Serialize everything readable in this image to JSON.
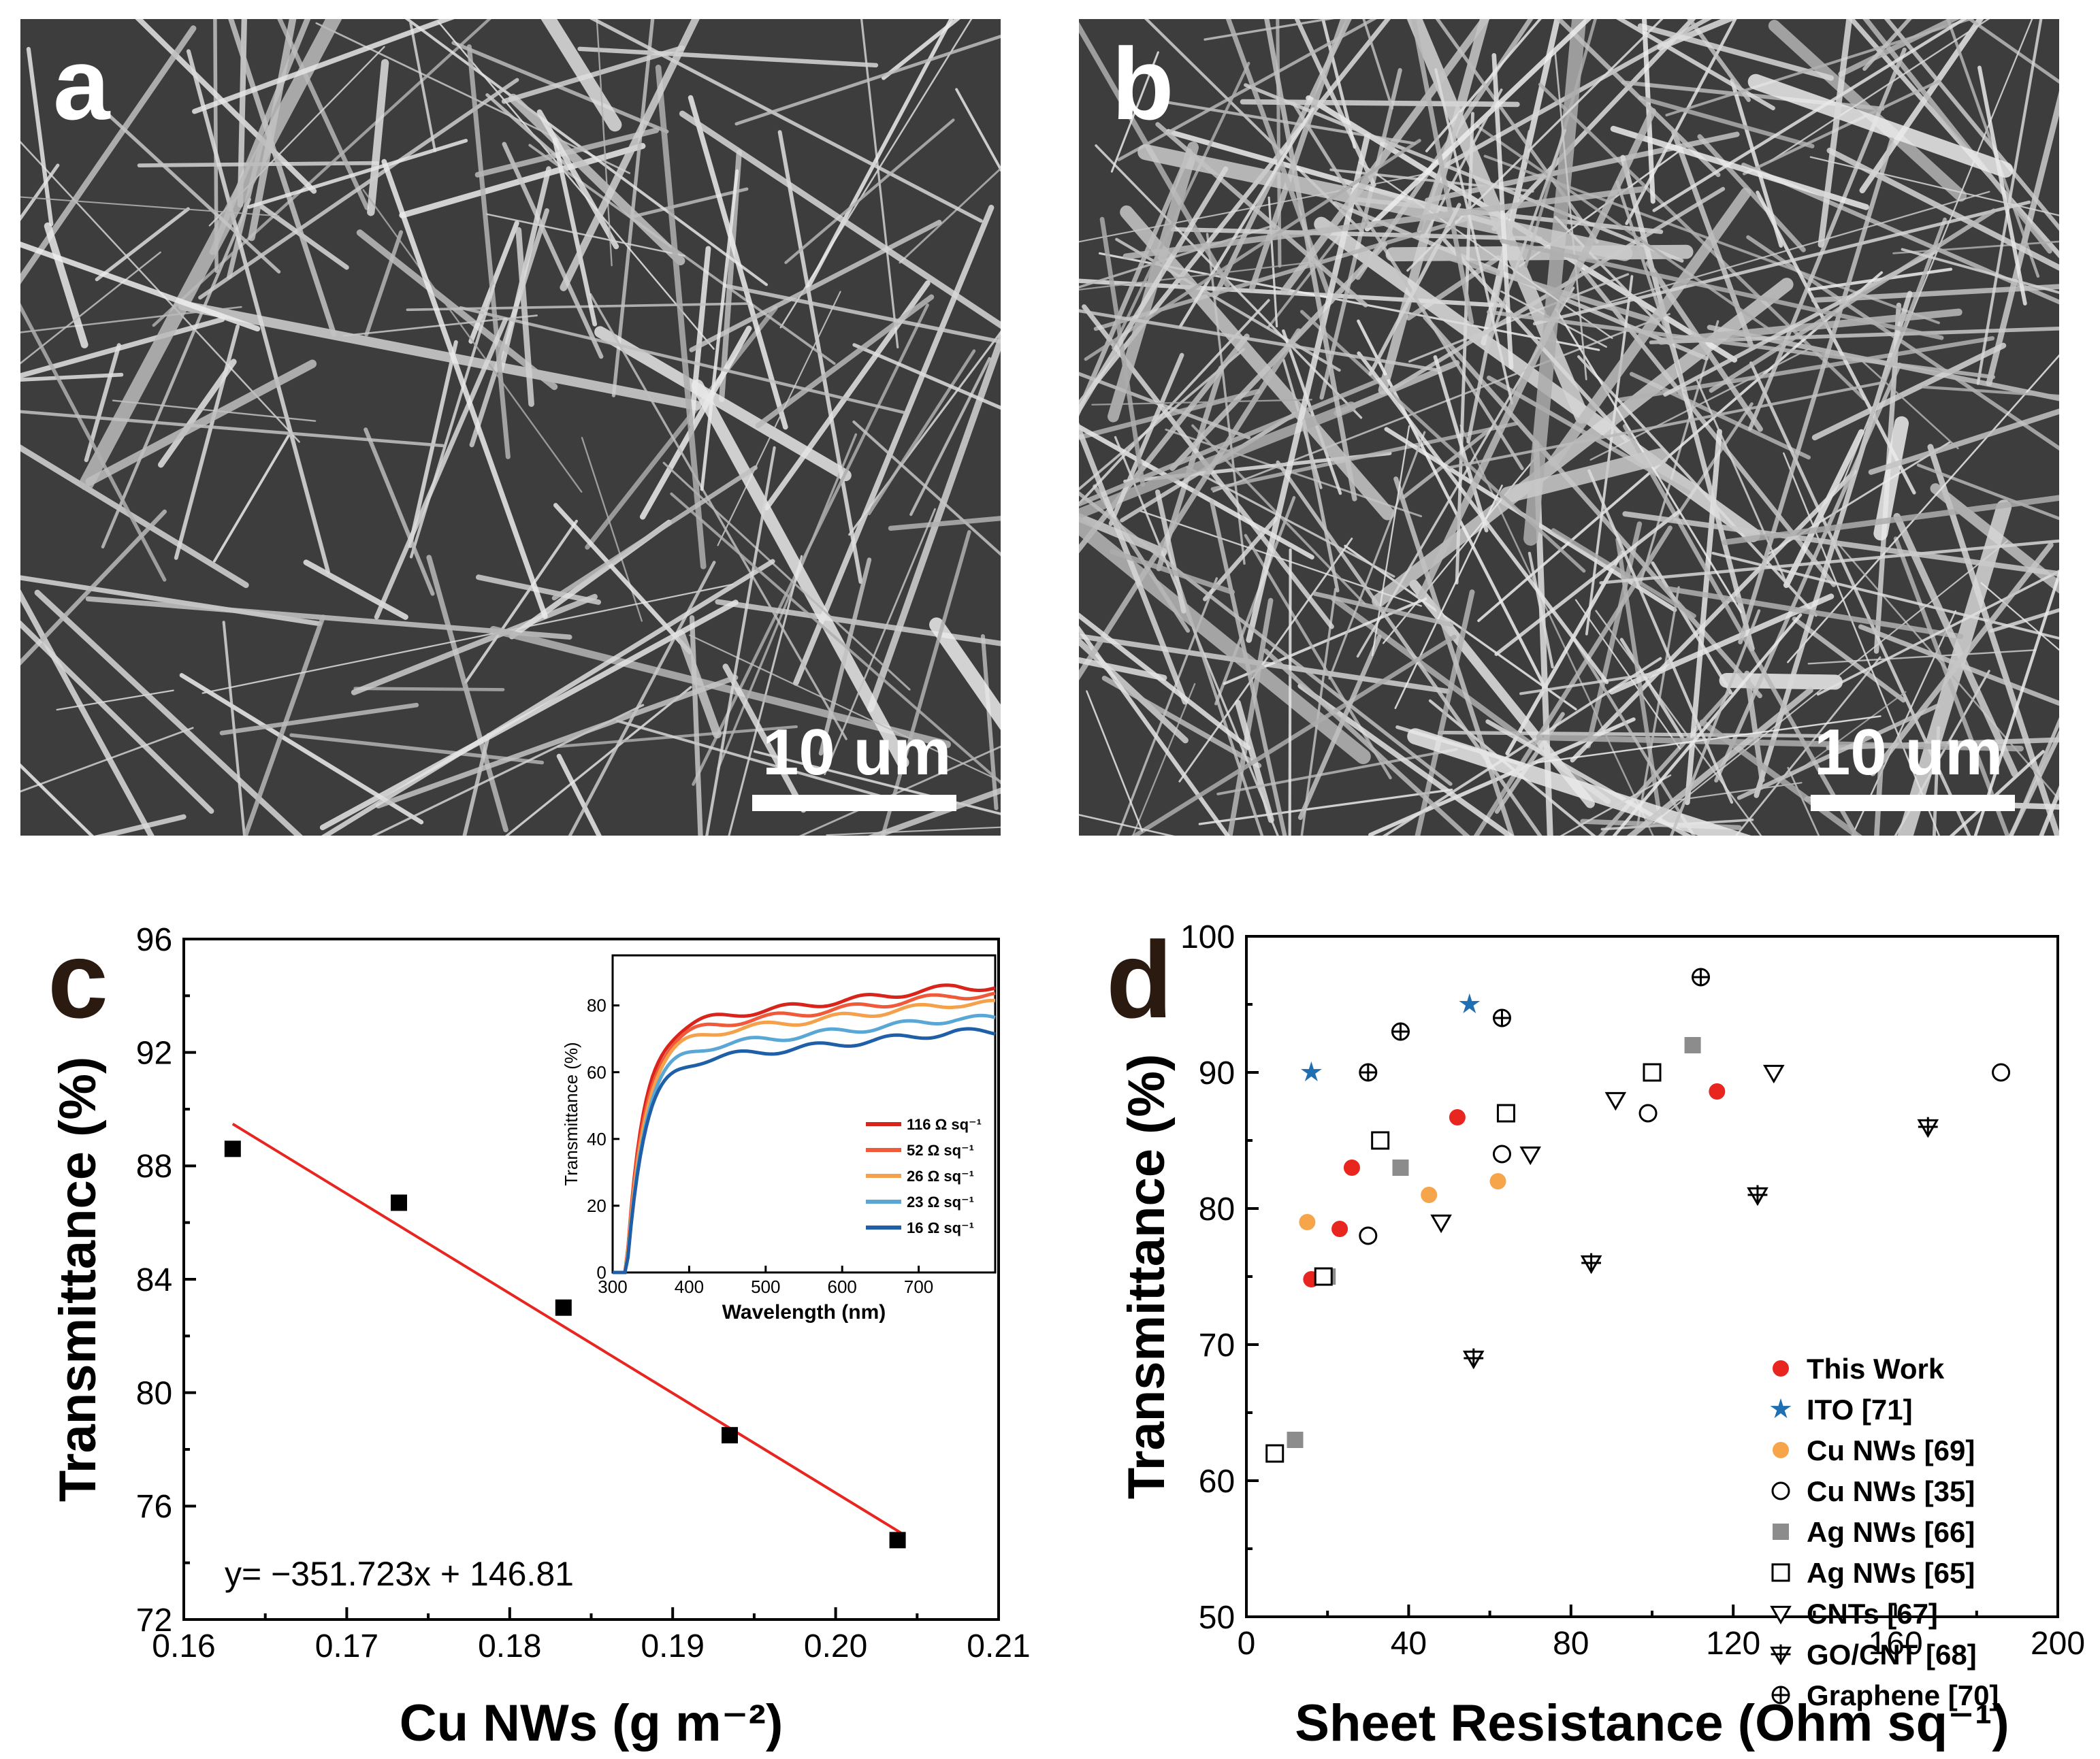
{
  "panels": {
    "a": {
      "letter": "a",
      "scale_label": "10 um"
    },
    "b": {
      "letter": "b",
      "scale_label": "10 um"
    },
    "c": {
      "letter": "c"
    },
    "d": {
      "letter": "d"
    }
  },
  "chart_data": [
    {
      "id": "c",
      "type": "scatter",
      "xlabel": "Cu NWs (g m⁻²)",
      "ylabel": "Transmittance (%)",
      "xlim": [
        0.16,
        0.21
      ],
      "ylim": [
        72,
        96
      ],
      "xticks": [
        "0.16",
        "0.17",
        "0.18",
        "0.19",
        "0.20",
        "0.21"
      ],
      "yticks": [
        "72",
        "76",
        "80",
        "84",
        "88",
        "92",
        "96"
      ],
      "points": [
        {
          "x": 0.163,
          "y": 88.6
        },
        {
          "x": 0.1732,
          "y": 86.7
        },
        {
          "x": 0.1833,
          "y": 83.0
        },
        {
          "x": 0.1935,
          "y": 78.5
        },
        {
          "x": 0.2038,
          "y": 74.8
        }
      ],
      "fit": {
        "slope": -351.723,
        "intercept": 146.81,
        "x_range": [
          0.163,
          0.204
        ],
        "color": "#e8251f"
      },
      "equation": "y= −351.723x + 146.81",
      "inset": {
        "type": "line",
        "xlabel": "Wavelength (nm)",
        "ylabel": "Transmittance (%)",
        "xlim": [
          300,
          800
        ],
        "ylim": [
          0,
          95
        ],
        "xticks": [
          "300",
          "400",
          "500",
          "600",
          "700"
        ],
        "yticks": [
          "0",
          "20",
          "40",
          "60",
          "80"
        ],
        "series": [
          {
            "name": "116 Ω sq⁻¹",
            "color": "#d9241c",
            "plateau": 85.5
          },
          {
            "name": "52 Ω sq⁻¹",
            "color": "#f05a3a",
            "plateau": 83.0
          },
          {
            "name": "26 Ω sq⁻¹",
            "color": "#f5a04a",
            "plateau": 80.5
          },
          {
            "name": "23 Ω sq⁻¹",
            "color": "#5aa7d6",
            "plateau": 76.0
          },
          {
            "name": "16 Ω sq⁻¹",
            "color": "#1f5fa8",
            "plateau": 72.0
          }
        ]
      }
    },
    {
      "id": "d",
      "type": "scatter",
      "xlabel": "Sheet Resistance (Ohm sq⁻¹)",
      "ylabel": "Transmittance (%)",
      "xlim": [
        0,
        200
      ],
      "ylim": [
        50,
        100
      ],
      "xticks": [
        "0",
        "40",
        "80",
        "120",
        "160",
        "200"
      ],
      "yticks": [
        "50",
        "60",
        "70",
        "80",
        "90",
        "100"
      ],
      "legend_position": "bottom-right",
      "series": [
        {
          "name": "This Work",
          "marker": "circle-filled",
          "color": "#e8251f",
          "points": [
            [
              16,
              74.8
            ],
            [
              23,
              78.5
            ],
            [
              26,
              83.0
            ],
            [
              52,
              86.7
            ],
            [
              116,
              88.6
            ]
          ]
        },
        {
          "name": "ITO [71]",
          "marker": "star",
          "color": "#1f6fb2",
          "points": [
            [
              16,
              90
            ],
            [
              55,
              95
            ]
          ]
        },
        {
          "name": "Cu NWs [69]",
          "marker": "circle-filled",
          "color": "#f7a54a",
          "points": [
            [
              15,
              79
            ],
            [
              45,
              81
            ],
            [
              62,
              82
            ]
          ]
        },
        {
          "name": "Cu NWs [35]",
          "marker": "circle-open",
          "color": "#000000",
          "points": [
            [
              30,
              78
            ],
            [
              63,
              84
            ],
            [
              99,
              87
            ],
            [
              186,
              90
            ]
          ]
        },
        {
          "name": "Ag NWs [66]",
          "marker": "square-filled",
          "color": "#8c8c8c",
          "points": [
            [
              12,
              63
            ],
            [
              20,
              75
            ],
            [
              38,
              83
            ],
            [
              110,
              92
            ]
          ]
        },
        {
          "name": "Ag NWs [65]",
          "marker": "square-open",
          "color": "#000000",
          "points": [
            [
              7,
              62
            ],
            [
              19,
              75
            ],
            [
              33,
              85
            ],
            [
              64,
              87
            ],
            [
              100,
              90
            ]
          ]
        },
        {
          "name": "CNTs [67]",
          "marker": "triangle-down-open",
          "color": "#000000",
          "points": [
            [
              48,
              79
            ],
            [
              70,
              84
            ],
            [
              91,
              88
            ],
            [
              130,
              90
            ]
          ]
        },
        {
          "name": "GO/CNT [68]",
          "marker": "triangle-cross",
          "color": "#000000",
          "points": [
            [
              56,
              69
            ],
            [
              85,
              76
            ],
            [
              126,
              81
            ],
            [
              168,
              86
            ]
          ]
        },
        {
          "name": "Graphene [70]",
          "marker": "circle-cross",
          "color": "#000000",
          "points": [
            [
              30,
              90
            ],
            [
              38,
              93
            ],
            [
              63,
              94
            ],
            [
              112,
              97
            ]
          ]
        }
      ]
    }
  ]
}
